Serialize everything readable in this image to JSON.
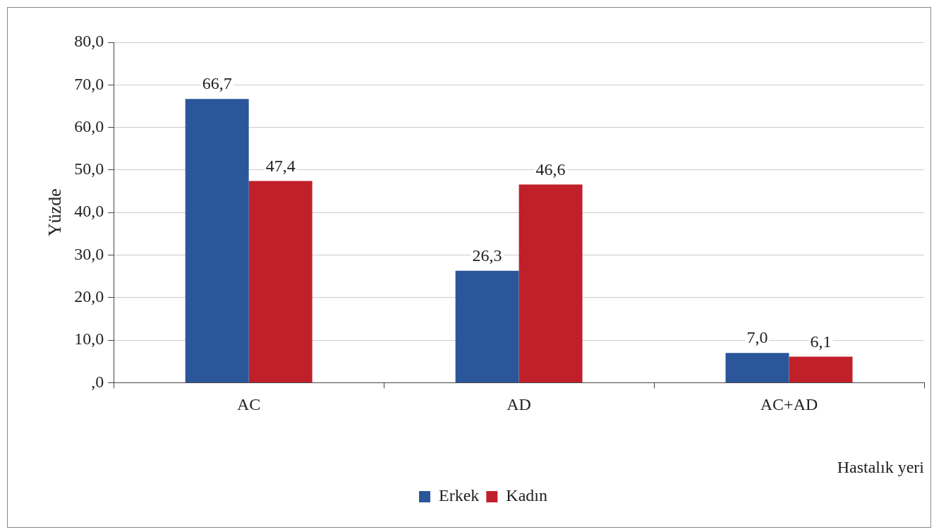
{
  "chart_data": {
    "type": "bar",
    "xlabel": "Hastalık yeri",
    "ylabel": "Yüzde",
    "categories": [
      "AC",
      "AD",
      "AC+AD"
    ],
    "series": [
      {
        "name": "Erkek",
        "color": "#2b579a",
        "values": [
          66.7,
          26.3,
          7.0
        ],
        "value_labels": [
          "66,7",
          "26,3",
          "7,0"
        ]
      },
      {
        "name": "Kadın",
        "color": "#c0202a",
        "values": [
          47.4,
          46.6,
          6.1
        ],
        "value_labels": [
          "47,4",
          "46,6",
          "6,1"
        ]
      }
    ],
    "ylim": [
      0,
      80
    ],
    "yticks": [
      {
        "value": 0,
        "label": ",0"
      },
      {
        "value": 10,
        "label": "10,0"
      },
      {
        "value": 20,
        "label": "20,0"
      },
      {
        "value": 30,
        "label": "30,0"
      },
      {
        "value": 40,
        "label": "40,0"
      },
      {
        "value": 50,
        "label": "50,0"
      },
      {
        "value": 60,
        "label": "60,0"
      },
      {
        "value": 70,
        "label": "70,0"
      },
      {
        "value": 80,
        "label": "80,0"
      }
    ],
    "grid": "y",
    "legend": "bottom"
  }
}
